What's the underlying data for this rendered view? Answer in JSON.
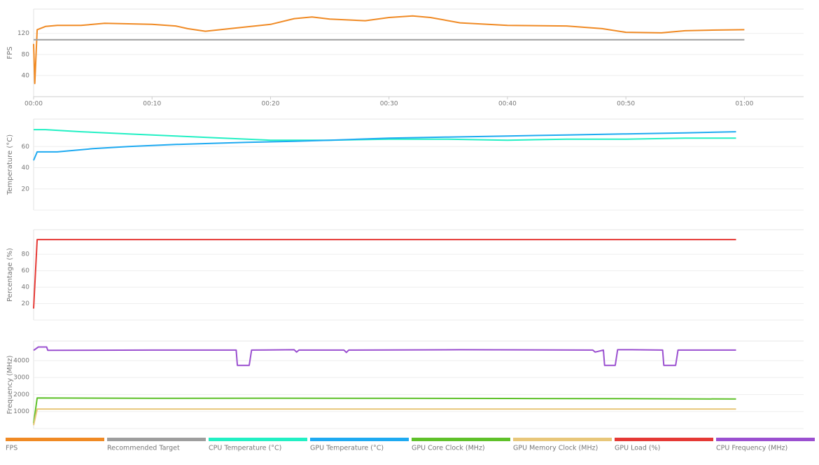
{
  "chart_data": [
    {
      "type": "line",
      "ylabel": "FPS",
      "xlim": [
        0,
        65
      ],
      "ylim": [
        0,
        166
      ],
      "yticks": [
        40,
        80,
        120
      ],
      "grid": true,
      "xticks": [
        {
          "value": 0,
          "label": "00:00"
        },
        {
          "value": 10,
          "label": "00:10"
        },
        {
          "value": 20,
          "label": "00:20"
        },
        {
          "value": 30,
          "label": "00:30"
        },
        {
          "value": 40,
          "label": "00:40"
        },
        {
          "value": 50,
          "label": "00:50"
        },
        {
          "value": 60,
          "label": "01:00"
        }
      ],
      "series": [
        {
          "name": "FPS",
          "color": "#f08a24",
          "x": [
            0,
            0.1,
            0.3,
            1,
            2,
            4,
            6,
            10,
            12,
            13,
            14.5,
            17,
            20,
            22,
            23.5,
            25,
            28,
            30,
            32,
            33.5,
            36,
            40,
            45,
            48,
            50,
            53,
            55,
            57,
            60
          ],
          "values": [
            100,
            25,
            127,
            133,
            135,
            135,
            139,
            137,
            134,
            129,
            124,
            130,
            137,
            148,
            151,
            147,
            144,
            150,
            153,
            150,
            140,
            135,
            134,
            129,
            122,
            121,
            125,
            126,
            127
          ]
        },
        {
          "name": "Recommended Target",
          "color": "#9e9e9e",
          "x": [
            0,
            60
          ],
          "values": [
            108,
            108
          ]
        }
      ]
    },
    {
      "type": "line",
      "ylabel": "Temperature (°C)",
      "xlim": [
        0,
        65
      ],
      "ylim": [
        0,
        86
      ],
      "yticks": [
        20,
        40,
        60
      ],
      "grid": true,
      "series": [
        {
          "name": "CPU Temperature (°C)",
          "color": "#22f0c4",
          "x": [
            0,
            1,
            4,
            8,
            12,
            16,
            20,
            25,
            30,
            35,
            40,
            45,
            50,
            55,
            59.3
          ],
          "values": [
            76,
            76,
            74,
            72,
            70,
            68,
            66,
            66,
            67,
            67,
            66,
            67,
            67,
            68,
            68
          ]
        },
        {
          "name": "GPU Temperature (°C)",
          "color": "#1eaaf1",
          "x": [
            0,
            0.3,
            2,
            5,
            8,
            12,
            15,
            18,
            22,
            25,
            30,
            35,
            40,
            45,
            50,
            55,
            59.3
          ],
          "values": [
            47,
            55,
            55,
            58,
            60,
            62,
            63,
            64,
            65,
            66,
            68,
            69,
            70,
            71,
            72,
            73,
            74
          ]
        }
      ]
    },
    {
      "type": "line",
      "ylabel": "Percentage (%)",
      "xlim": [
        0,
        65
      ],
      "ylim": [
        0,
        110
      ],
      "yticks": [
        20,
        40,
        60,
        80
      ],
      "grid": true,
      "series": [
        {
          "name": "GPU Load (%)",
          "color": "#e53935",
          "x": [
            0,
            0.3,
            59.3
          ],
          "values": [
            14,
            98,
            98
          ]
        }
      ]
    },
    {
      "type": "line",
      "ylabel": "Frequency (MHz)",
      "xlim": [
        0,
        65
      ],
      "ylim": [
        0,
        5150
      ],
      "yticks": [
        1000,
        2000,
        3000,
        4000
      ],
      "grid": true,
      "series": [
        {
          "name": "GPU Core Clock (MHz)",
          "color": "#5fc12a",
          "x": [
            0,
            0.3,
            10,
            20,
            30,
            40,
            50,
            59.3
          ],
          "values": [
            300,
            1800,
            1780,
            1790,
            1780,
            1770,
            1760,
            1740
          ]
        },
        {
          "name": "GPU Memory Clock (MHz)",
          "color": "#e8c77a",
          "x": [
            0,
            0.3,
            59.3
          ],
          "values": [
            200,
            1150,
            1150
          ]
        },
        {
          "name": "CPU Frequency (MHz)",
          "color": "#9b50d0",
          "x": [
            0,
            0.4,
            1.1,
            1.2,
            10,
            17.1,
            17.2,
            18.2,
            18.4,
            22,
            22.2,
            22.4,
            26.2,
            26.4,
            26.6,
            36,
            47.2,
            47.4,
            48.1,
            48.2,
            49.1,
            49.3,
            50.5,
            53.1,
            53.2,
            54.2,
            54.4,
            59.3
          ],
          "values": [
            4600,
            4800,
            4800,
            4600,
            4620,
            4620,
            3720,
            3720,
            4620,
            4640,
            4500,
            4620,
            4620,
            4480,
            4620,
            4640,
            4620,
            4500,
            4620,
            3720,
            3720,
            4640,
            4640,
            4620,
            3720,
            3720,
            4620,
            4620
          ]
        }
      ]
    }
  ]
}
